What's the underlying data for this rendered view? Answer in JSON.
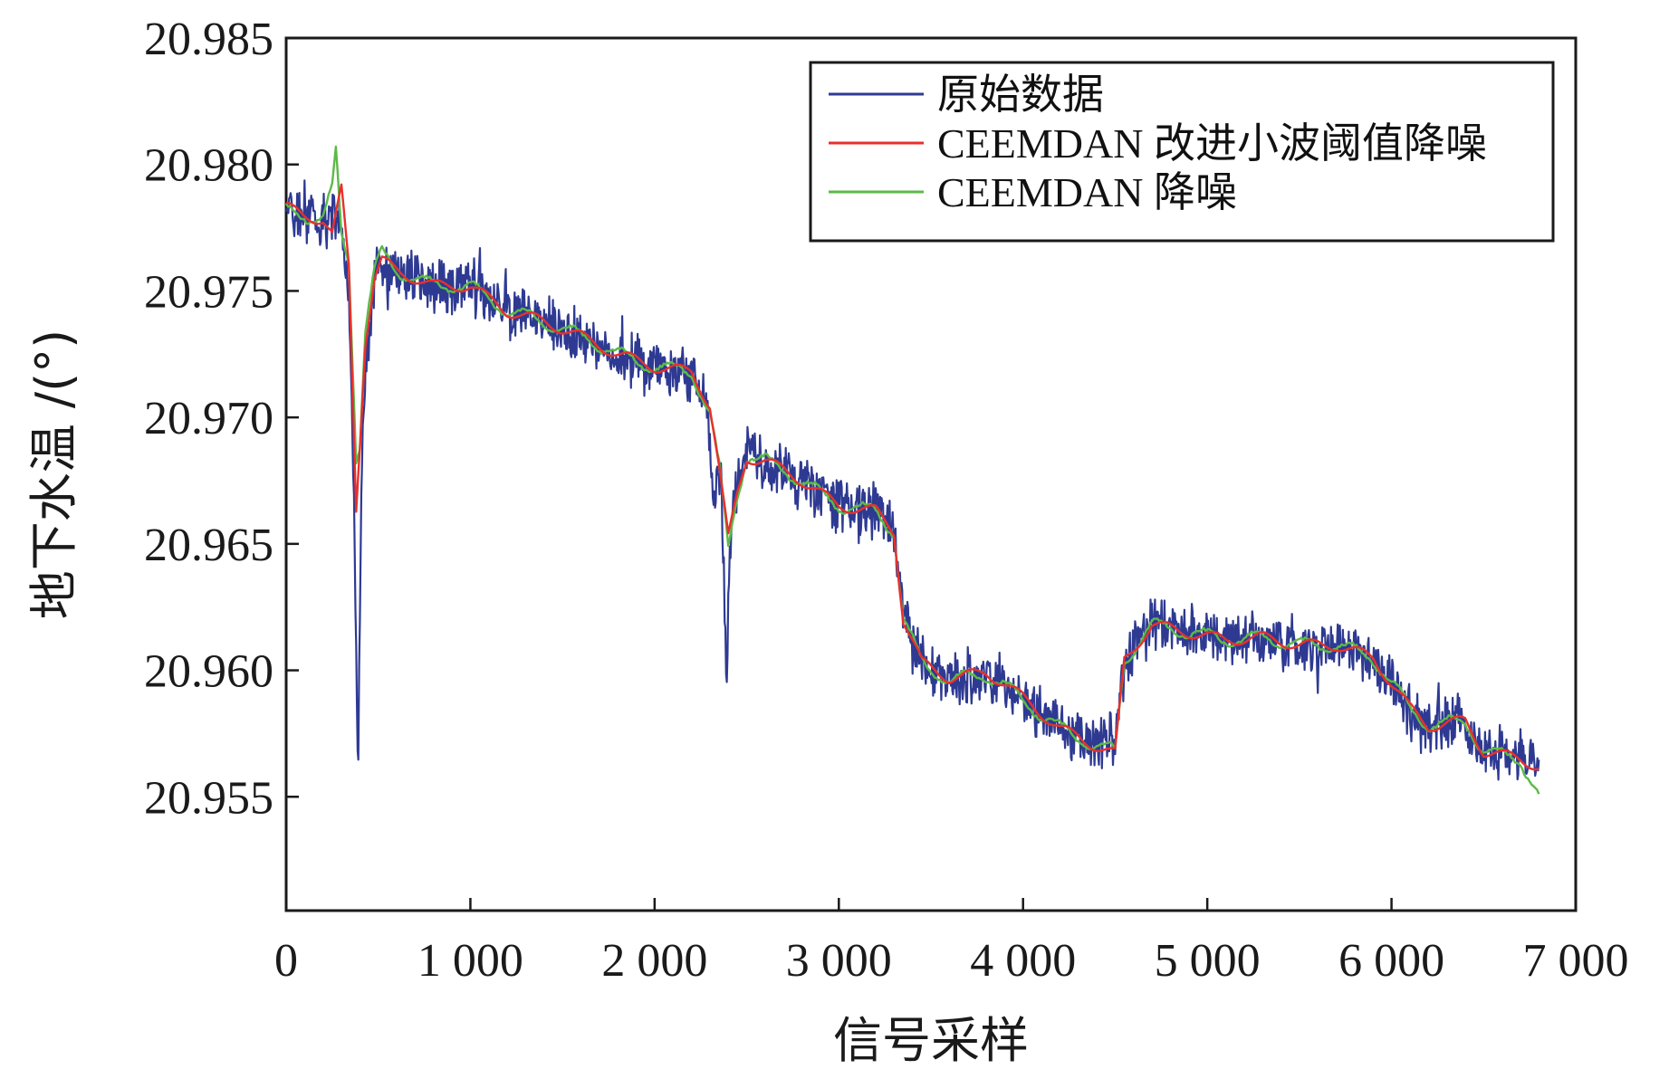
{
  "chart_data": {
    "type": "line",
    "xlabel": "信号采样",
    "ylabel": "地下水温 /(°)",
    "xlim": [
      0,
      7000
    ],
    "ylim": [
      20.9505,
      20.985
    ],
    "x_ticks": [
      0,
      1000,
      2000,
      3000,
      4000,
      5000,
      6000,
      7000
    ],
    "x_tick_labels": [
      "0",
      "1 000",
      "2 000",
      "3 000",
      "4 000",
      "5 000",
      "6 000",
      "7 000"
    ],
    "y_ticks": [
      20.955,
      20.96,
      20.965,
      20.97,
      20.975,
      20.98,
      20.985
    ],
    "y_tick_labels": [
      "20.955",
      "20.960",
      "20.965",
      "20.970",
      "20.975",
      "20.980",
      "20.985"
    ],
    "grid": false,
    "legend_position": "top-right",
    "series": [
      {
        "name": "原始数据",
        "color": "#2e3a92",
        "style": "noisy",
        "x": [
          0,
          100,
          200,
          260,
          300,
          340,
          370,
          390,
          410,
          440,
          480,
          520,
          600,
          800,
          1000,
          1200,
          1400,
          1600,
          1800,
          2000,
          2200,
          2280,
          2320,
          2360,
          2390,
          2410,
          2450,
          2500,
          2600,
          2800,
          3000,
          3200,
          3300,
          3350,
          3450,
          3600,
          3800,
          3900,
          4000,
          4200,
          4400,
          4500,
          4550,
          4700,
          4900,
          5100,
          5300,
          5500,
          5700,
          5900,
          6000,
          6100,
          6200,
          6400,
          6500,
          6700,
          6800
        ],
        "y": [
          20.9785,
          20.978,
          20.9778,
          20.978,
          20.9775,
          20.975,
          20.966,
          20.9555,
          20.9685,
          20.9725,
          20.9755,
          20.9762,
          20.9758,
          20.9752,
          20.9752,
          20.9742,
          20.9738,
          20.9732,
          20.9725,
          20.972,
          20.9718,
          20.971,
          20.967,
          20.968,
          20.9595,
          20.9655,
          20.9672,
          20.9685,
          20.9683,
          20.9675,
          20.9665,
          20.9663,
          20.9655,
          20.9622,
          20.9602,
          20.9596,
          20.9598,
          20.9594,
          20.9588,
          20.9577,
          20.957,
          20.9572,
          20.9603,
          20.9618,
          20.9615,
          20.9612,
          20.9613,
          20.961,
          20.961,
          20.9605,
          20.9595,
          20.9585,
          20.9578,
          20.958,
          20.9568,
          20.9565,
          20.9562
        ]
      },
      {
        "name": "CEEMDAN 改进小波阈值降噪",
        "color": "#e8302c",
        "style": "smooth",
        "x": [
          0,
          100,
          200,
          250,
          300,
          340,
          380,
          400,
          430,
          480,
          520,
          600,
          800,
          1000,
          1200,
          1400,
          1600,
          1800,
          2000,
          2200,
          2300,
          2350,
          2400,
          2450,
          2500,
          2600,
          2800,
          3000,
          3200,
          3300,
          3350,
          3450,
          3600,
          3800,
          3900,
          4000,
          4200,
          4400,
          4500,
          4550,
          4700,
          4900,
          5100,
          5300,
          5500,
          5700,
          5900,
          6000,
          6100,
          6200,
          6400,
          6500,
          6700,
          6800
        ],
        "y": [
          20.9783,
          20.978,
          20.9778,
          20.9772,
          20.979,
          20.976,
          20.9664,
          20.969,
          20.973,
          20.9755,
          20.9762,
          20.9758,
          20.9752,
          20.9752,
          20.9742,
          20.9738,
          20.9732,
          20.9725,
          20.972,
          20.9718,
          20.9705,
          20.968,
          20.9652,
          20.967,
          20.9684,
          20.9683,
          20.9675,
          20.9665,
          20.9663,
          20.9655,
          20.962,
          20.9603,
          20.9597,
          20.9599,
          20.9595,
          20.9589,
          20.9577,
          20.957,
          20.9567,
          20.9604,
          20.9618,
          20.9615,
          20.9612,
          20.9613,
          20.961,
          20.961,
          20.9605,
          20.9595,
          20.9585,
          20.9578,
          20.958,
          20.9568,
          20.9565,
          20.9562
        ]
      },
      {
        "name": "CEEMDAN 降噪",
        "color": "#5cba47",
        "style": "smooth",
        "x": [
          0,
          100,
          200,
          250,
          270,
          300,
          340,
          380,
          400,
          430,
          480,
          520,
          600,
          800,
          1000,
          1200,
          1400,
          1600,
          1800,
          2000,
          2200,
          2300,
          2350,
          2400,
          2450,
          2500,
          2600,
          2800,
          3000,
          3200,
          3300,
          3350,
          3450,
          3600,
          3800,
          3900,
          4000,
          4200,
          4400,
          4500,
          4550,
          4700,
          4900,
          5100,
          5300,
          5500,
          5700,
          5900,
          6000,
          6100,
          6200,
          6400,
          6500,
          6700,
          6800
        ],
        "y": [
          20.9782,
          20.978,
          20.9778,
          20.979,
          20.9805,
          20.9772,
          20.9762,
          20.9685,
          20.969,
          20.9735,
          20.9758,
          20.9765,
          20.9758,
          20.9752,
          20.9752,
          20.9742,
          20.9738,
          20.9732,
          20.9725,
          20.972,
          20.9718,
          20.9702,
          20.968,
          20.9648,
          20.967,
          20.9685,
          20.9683,
          20.9675,
          20.9665,
          20.9663,
          20.9655,
          20.962,
          20.9603,
          20.9596,
          20.9598,
          20.9594,
          20.9588,
          20.9577,
          20.957,
          20.9568,
          20.9604,
          20.9618,
          20.9615,
          20.9612,
          20.9613,
          20.961,
          20.961,
          20.9605,
          20.9595,
          20.9585,
          20.9578,
          20.958,
          20.9568,
          20.9565,
          20.955
        ]
      }
    ]
  }
}
